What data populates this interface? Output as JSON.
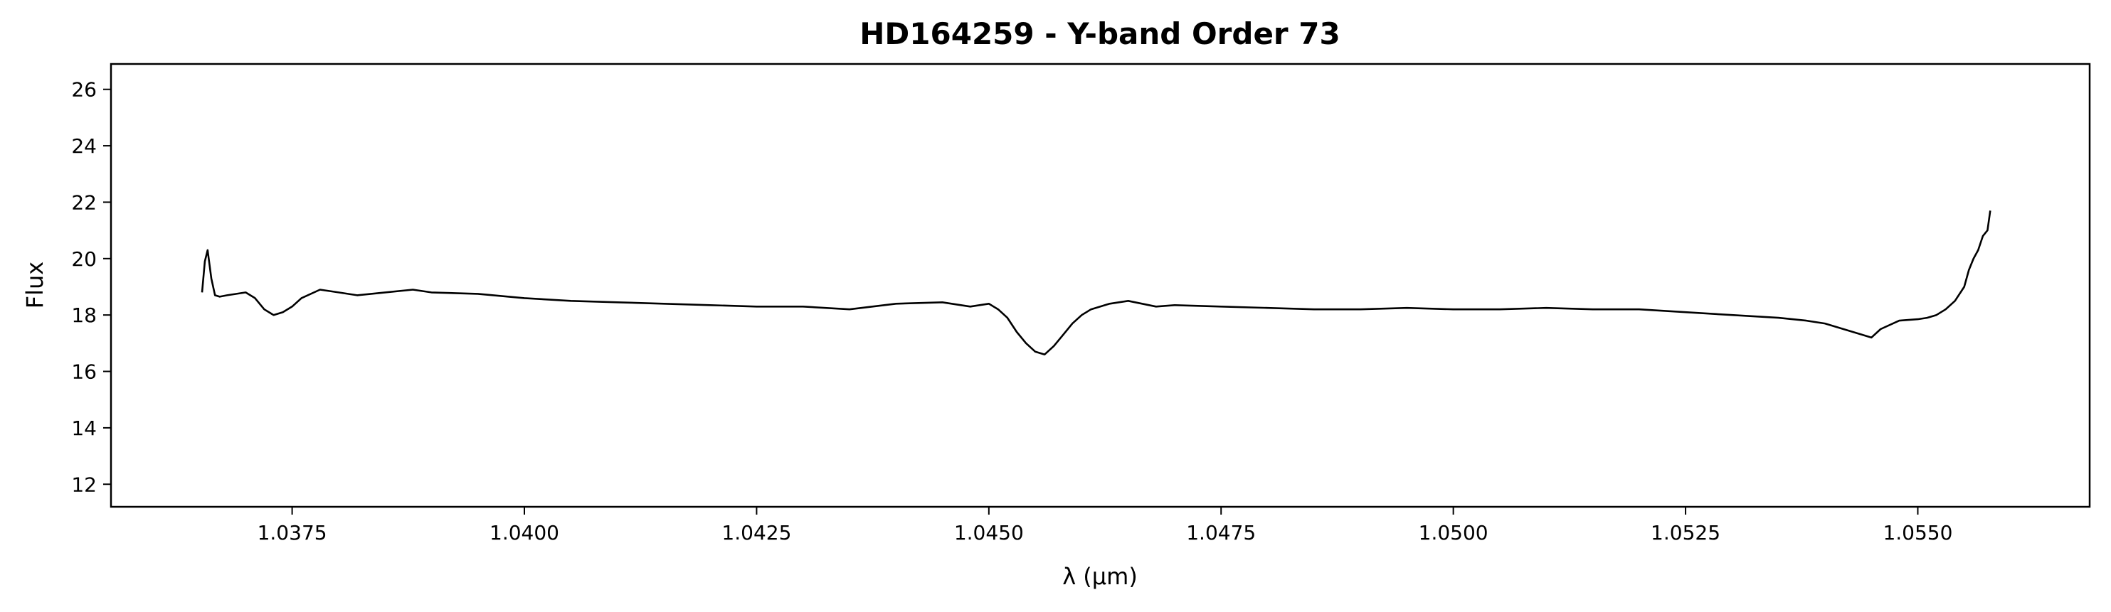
{
  "chart_data": {
    "type": "line",
    "title": "HD164259 - Y-band Order 73",
    "xlabel": "λ (μm)",
    "ylabel": "Flux",
    "xlim": [
      1.03555,
      1.05685
    ],
    "ylim": [
      11.2,
      26.9
    ],
    "xticks": [
      1.0375,
      1.04,
      1.0425,
      1.045,
      1.0475,
      1.05,
      1.0525,
      1.055
    ],
    "xtick_labels": [
      "1.0375",
      "1.0400",
      "1.0425",
      "1.0450",
      "1.0475",
      "1.0500",
      "1.0525",
      "1.0550"
    ],
    "yticks": [
      12,
      14,
      16,
      18,
      20,
      22,
      24,
      26
    ],
    "ytick_labels": [
      "12",
      "14",
      "16",
      "18",
      "20",
      "22",
      "24",
      "26"
    ],
    "grid": false,
    "series": [
      {
        "color": "#000000",
        "x": [
          1.03653,
          1.03656,
          1.03659,
          1.03663,
          1.03667,
          1.03672,
          1.0368,
          1.0369,
          1.037,
          1.0371,
          1.0372,
          1.0373,
          1.0374,
          1.0375,
          1.0376,
          1.0378,
          1.038,
          1.0382,
          1.0385,
          1.0388,
          1.039,
          1.0395,
          1.04,
          1.0405,
          1.041,
          1.0415,
          1.042,
          1.0425,
          1.043,
          1.0435,
          1.044,
          1.0445,
          1.0448,
          1.045,
          1.0451,
          1.0452,
          1.0453,
          1.0454,
          1.0455,
          1.0456,
          1.0457,
          1.0458,
          1.0459,
          1.046,
          1.0461,
          1.0462,
          1.0463,
          1.0465,
          1.0468,
          1.047,
          1.0475,
          1.048,
          1.0485,
          1.049,
          1.0495,
          1.05,
          1.0505,
          1.051,
          1.0515,
          1.052,
          1.0525,
          1.053,
          1.0535,
          1.0538,
          1.054,
          1.0542,
          1.0544,
          1.0545,
          1.0546,
          1.0548,
          1.055,
          1.0551,
          1.0552,
          1.0553,
          1.0554,
          1.0555,
          1.05555,
          1.0556,
          1.05565,
          1.0557,
          1.05575,
          1.05578
        ],
        "y": [
          18.8,
          19.9,
          20.3,
          19.3,
          18.7,
          18.65,
          18.7,
          18.75,
          18.8,
          18.6,
          18.2,
          18.0,
          18.1,
          18.3,
          18.6,
          18.9,
          18.8,
          18.7,
          18.8,
          18.9,
          18.8,
          18.75,
          18.6,
          18.5,
          18.45,
          18.4,
          18.35,
          18.3,
          18.3,
          18.2,
          18.4,
          18.45,
          18.3,
          18.4,
          18.2,
          17.9,
          17.4,
          17.0,
          16.7,
          16.6,
          16.9,
          17.3,
          17.7,
          18.0,
          18.2,
          18.3,
          18.4,
          18.5,
          18.3,
          18.35,
          18.3,
          18.25,
          18.2,
          18.2,
          18.25,
          18.2,
          18.2,
          18.25,
          18.2,
          18.2,
          18.1,
          18.0,
          17.9,
          17.8,
          17.7,
          17.5,
          17.3,
          17.2,
          17.5,
          17.8,
          17.85,
          17.9,
          18.0,
          18.2,
          18.5,
          19.0,
          19.6,
          20.0,
          20.3,
          20.8,
          21.0,
          21.7
        ]
      }
    ]
  }
}
